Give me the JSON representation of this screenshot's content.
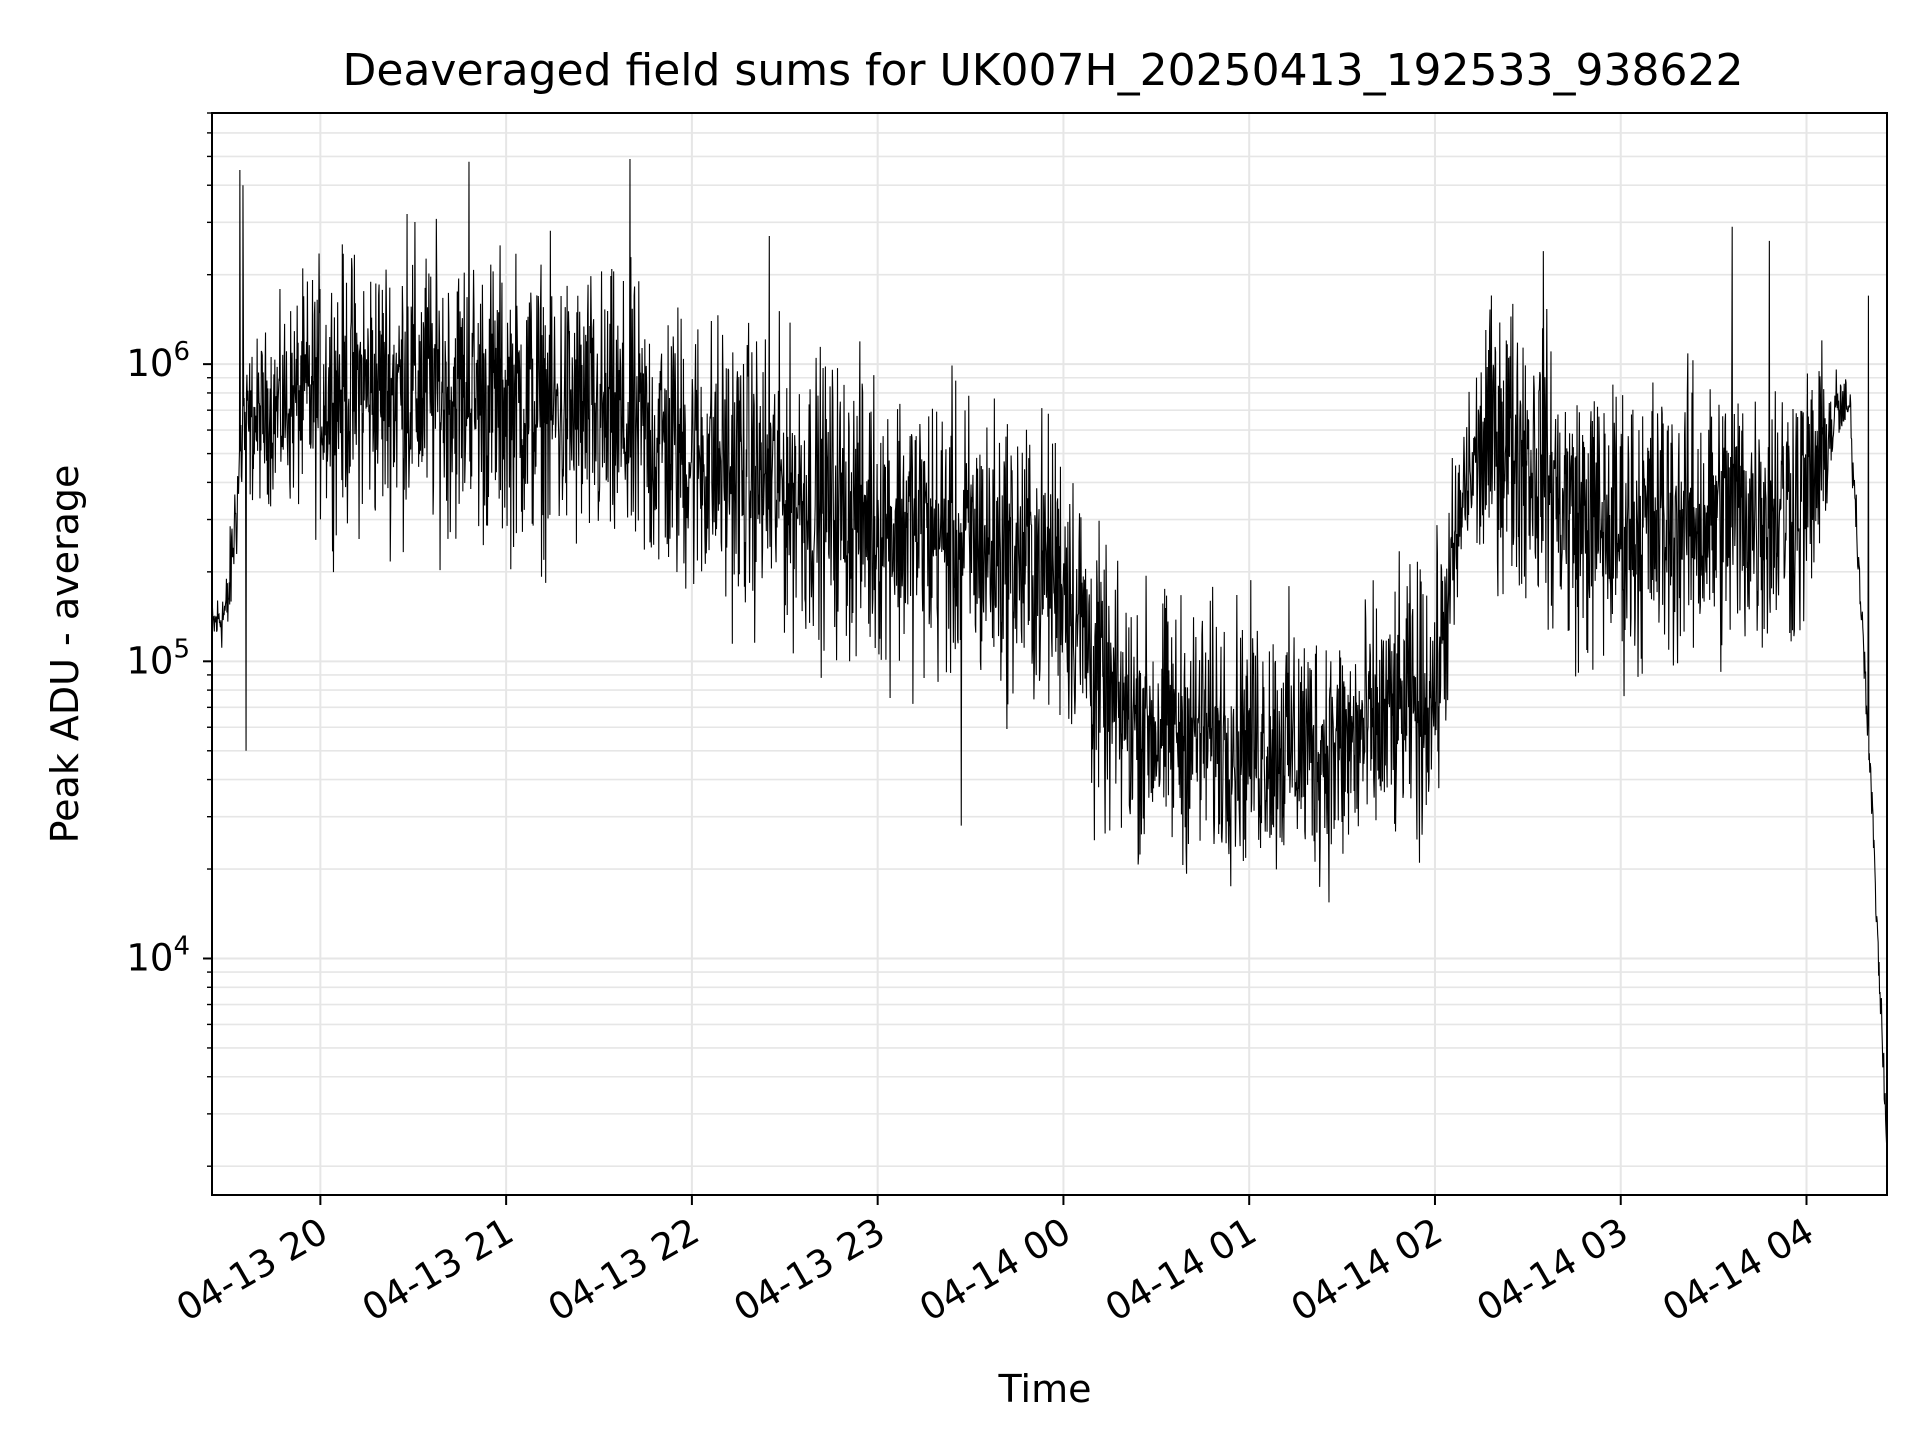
{
  "chart_data": {
    "type": "line",
    "title": "Deaveraged field sums for UK007H_20250413_192533_938622",
    "xlabel": "Time",
    "ylabel": "Peak ADU - average",
    "yscale": "log",
    "ylim": [
      1600,
      7000000
    ],
    "xlim": [
      "2025-04-13 19:25",
      "2025-04-14 04:26"
    ],
    "grid": true,
    "colors": {
      "line": "#000000",
      "grid": "#e6e6e6",
      "axes": "#000000"
    },
    "x_ticks": [
      {
        "t": "2025-04-13 20:00",
        "label": "04-13 20"
      },
      {
        "t": "2025-04-13 21:00",
        "label": "04-13 21"
      },
      {
        "t": "2025-04-13 22:00",
        "label": "04-13 22"
      },
      {
        "t": "2025-04-13 23:00",
        "label": "04-13 23"
      },
      {
        "t": "2025-04-14 00:00",
        "label": "04-14 00"
      },
      {
        "t": "2025-04-14 01:00",
        "label": "04-14 01"
      },
      {
        "t": "2025-04-14 02:00",
        "label": "04-14 02"
      },
      {
        "t": "2025-04-14 03:00",
        "label": "04-14 03"
      },
      {
        "t": "2025-04-14 04:00",
        "label": "04-14 04"
      }
    ],
    "y_ticks": [
      {
        "value": 10000,
        "base": "10",
        "exp": "4"
      },
      {
        "value": 100000,
        "base": "10",
        "exp": "5"
      },
      {
        "value": 1000000,
        "base": "10",
        "exp": "6"
      }
    ],
    "envelope": {
      "x": [
        "2025-04-13 19:25",
        "2025-04-13 19:30",
        "2025-04-13 19:35",
        "2025-04-13 19:45",
        "2025-04-13 20:00",
        "2025-04-13 20:30",
        "2025-04-13 21:00",
        "2025-04-13 21:30",
        "2025-04-13 22:00",
        "2025-04-13 22:30",
        "2025-04-13 23:00",
        "2025-04-13 23:30",
        "2025-04-14 00:00",
        "2025-04-14 00:15",
        "2025-04-14 00:30",
        "2025-04-14 01:00",
        "2025-04-14 01:30",
        "2025-04-14 02:00",
        "2025-04-14 02:10",
        "2025-04-14 02:20",
        "2025-04-14 02:30",
        "2025-04-14 02:45",
        "2025-04-14 03:00",
        "2025-04-14 03:30",
        "2025-04-14 04:00",
        "2025-04-14 04:10",
        "2025-04-14 04:14",
        "2025-04-14 04:20",
        "2025-04-14 04:26"
      ],
      "typical": [
        130000,
        150000,
        600000,
        700000,
        800000,
        850000,
        750000,
        650000,
        500000,
        380000,
        300000,
        250000,
        200000,
        70000,
        60000,
        55000,
        50000,
        80000,
        400000,
        600000,
        500000,
        300000,
        280000,
        300000,
        350000,
        700000,
        700000,
        60000,
        2300
      ],
      "spread_decades": [
        0.08,
        0.15,
        0.25,
        0.3,
        0.45,
        0.5,
        0.5,
        0.5,
        0.5,
        0.5,
        0.5,
        0.5,
        0.5,
        0.45,
        0.45,
        0.45,
        0.45,
        0.45,
        0.3,
        0.5,
        0.5,
        0.5,
        0.5,
        0.5,
        0.5,
        0.15,
        0.1,
        0.1,
        0.05
      ]
    },
    "spikes": [
      {
        "t": "2025-04-13 19:34",
        "value": 4500000
      },
      {
        "t": "2025-04-13 19:35",
        "value": 4000000
      },
      {
        "t": "2025-04-13 19:36",
        "value": 50000
      },
      {
        "t": "2025-04-13 20:28",
        "value": 3200000
      },
      {
        "t": "2025-04-13 20:48",
        "value": 4800000
      },
      {
        "t": "2025-04-13 21:40",
        "value": 4900000
      },
      {
        "t": "2025-04-13 22:25",
        "value": 2700000
      },
      {
        "t": "2025-04-13 23:27",
        "value": 28000
      },
      {
        "t": "2025-04-14 00:10",
        "value": 25000
      },
      {
        "t": "2025-04-14 01:55",
        "value": 21000
      },
      {
        "t": "2025-04-14 02:35",
        "value": 2400000
      },
      {
        "t": "2025-04-14 03:36",
        "value": 2900000
      },
      {
        "t": "2025-04-14 03:48",
        "value": 2600000
      },
      {
        "t": "2025-04-14 04:20",
        "value": 1700000
      }
    ],
    "points": 3600
  }
}
